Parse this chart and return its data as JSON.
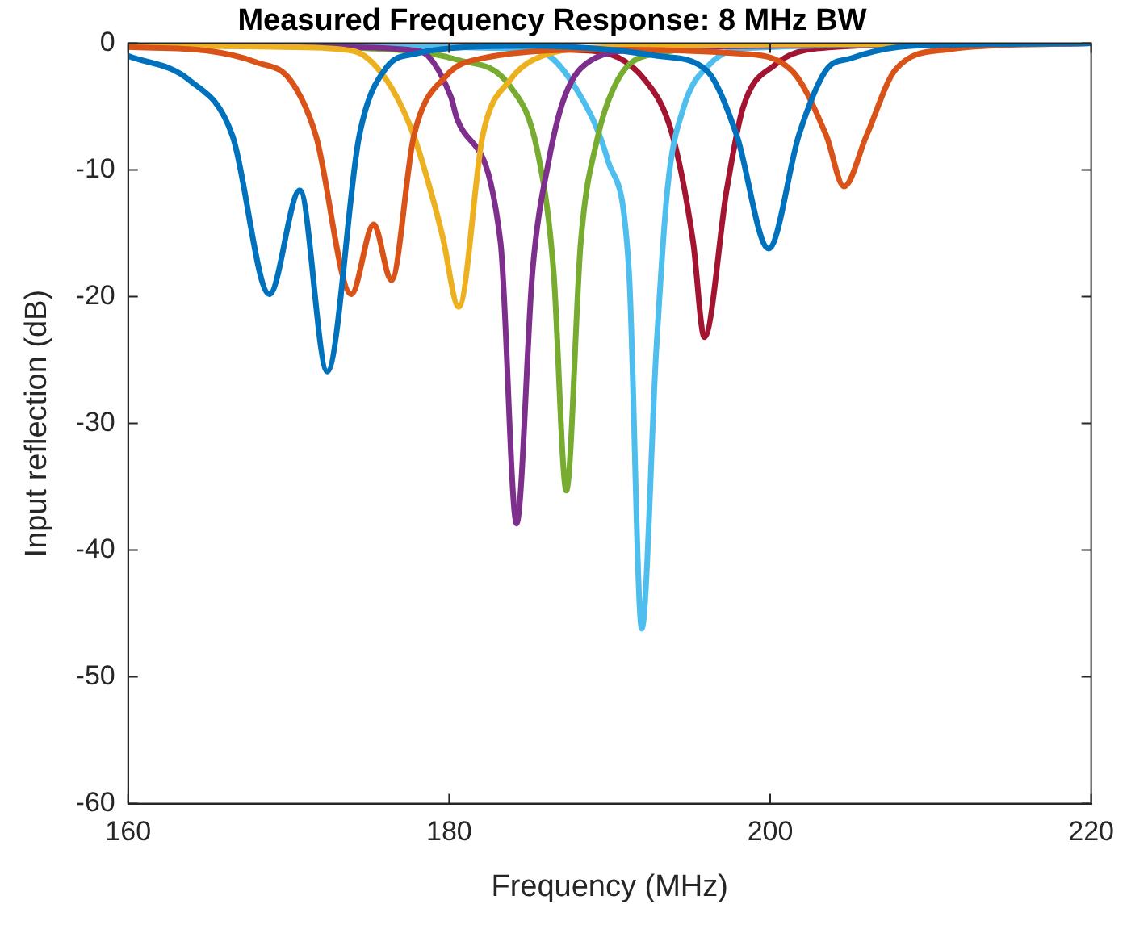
{
  "chart_data": {
    "type": "line",
    "title": "Measured Frequency Response: 8 MHz BW",
    "xlabel": "Frequency (MHz)",
    "ylabel": "Input reflection (dB)",
    "xlim": [
      160,
      220
    ],
    "xticks": [
      160,
      180,
      200,
      220
    ],
    "ylim": [
      -60,
      0
    ],
    "yticks": [
      -60,
      -50,
      -40,
      -30,
      -20,
      -10,
      0
    ],
    "grid": false,
    "legend": false,
    "marker": "none",
    "line_style": "solid",
    "series": [
      {
        "color": "#0072bd",
        "x": [
          160,
          163.8,
          166.5,
          168.8,
          170.7,
          172.4,
          174.4,
          176.1,
          178,
          180,
          185,
          190,
          193,
          196,
          197.9,
          199.9,
          201.8,
          203.5,
          205,
          208,
          212,
          220
        ],
        "values": [
          -1.0,
          -2.9,
          -7.3,
          -19.8,
          -11.6,
          -25.9,
          -7.3,
          -1.9,
          -0.8,
          -0.4,
          -0.2,
          -0.5,
          -1,
          -2.1,
          -7.2,
          -16.2,
          -7.2,
          -2.1,
          -1.2,
          -0.3,
          -0.1,
          0
        ]
      },
      {
        "color": "#d95319",
        "x": [
          160,
          165,
          168,
          170.1,
          171.7,
          173.9,
          175.3,
          176.4,
          177.8,
          179.8,
          182,
          190,
          198,
          201.3,
          203.5,
          204.6,
          206,
          207.8,
          211,
          220
        ],
        "values": [
          -0.3,
          -0.6,
          -1.5,
          -2.9,
          -7.3,
          -19.8,
          -14.3,
          -18.7,
          -7.3,
          -2.6,
          -1.2,
          -0.5,
          -0.8,
          -2.1,
          -7.3,
          -11.3,
          -7.3,
          -2.1,
          -0.5,
          0
        ]
      },
      {
        "color": "#edb120",
        "x": [
          160,
          170,
          174,
          176.1,
          177.8,
          179.1,
          179.6,
          180.6,
          182.1,
          183.8,
          185.8,
          190,
          200,
          220
        ],
        "values": [
          -0.1,
          -0.3,
          -0.6,
          -2.9,
          -7.3,
          -12.8,
          -15.3,
          -20.8,
          -7.2,
          -2.9,
          -1.0,
          -0.3,
          -0.1,
          0
        ]
      },
      {
        "color": "#7e2f8e",
        "x": [
          160,
          172,
          178.1,
          180.1,
          180.5,
          183.2,
          184.2,
          185.2,
          186.2,
          187.2,
          188.9,
          192,
          200,
          220
        ],
        "values": [
          -0.1,
          -0.3,
          -0.6,
          -4.2,
          -6,
          -15.7,
          -37.9,
          -17.9,
          -9.3,
          -4.2,
          -1.3,
          -0.5,
          -0.2,
          0
        ]
      },
      {
        "color": "#77ac30",
        "x": [
          160,
          175,
          180.5,
          183.8,
          185.5,
          186.5,
          187.3,
          188.2,
          189.2,
          190.5,
          192.5,
          200,
          220
        ],
        "values": [
          -0.1,
          -0.4,
          -1.3,
          -3.4,
          -8.5,
          -17.9,
          -35.3,
          -15.7,
          -7.7,
          -2.9,
          -0.9,
          -0.2,
          0
        ]
      },
      {
        "color": "#4dbeee",
        "x": [
          160,
          178,
          185.5,
          188.2,
          189.9,
          191.2,
          192.0,
          192.9,
          193.6,
          194.6,
          196.2,
          198.3,
          210,
          220
        ],
        "values": [
          -0.1,
          -0.3,
          -0.6,
          -4.2,
          -9.3,
          -17.9,
          -46.2,
          -24.3,
          -11.5,
          -5.1,
          -1.7,
          -0.4,
          -0.1,
          0
        ]
      },
      {
        "color": "#a2142f",
        "x": [
          160,
          180,
          188.9,
          192.2,
          193.9,
          195.2,
          195.9,
          197.3,
          198.3,
          200.3,
          203,
          210,
          220
        ],
        "values": [
          -0.1,
          -0.3,
          -0.6,
          -2.9,
          -7.2,
          -15.7,
          -23.2,
          -11.5,
          -5.1,
          -1.7,
          -0.4,
          -0.1,
          0
        ]
      }
    ]
  }
}
